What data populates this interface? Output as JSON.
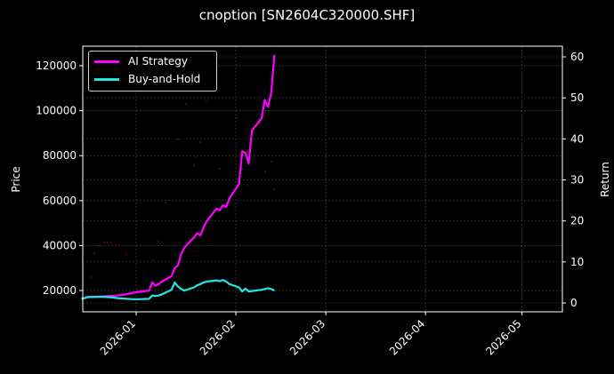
{
  "chart_data": {
    "type": "line",
    "title": "cnoption [SN2604C320000.SHF]",
    "xlabel": "",
    "ylabel_left": "Price",
    "ylabel_right": "Return",
    "x_ticks": [
      "2026-01",
      "2026-02",
      "2026-03",
      "2026-04",
      "2026-05"
    ],
    "y_left_ticks": [
      20000,
      40000,
      60000,
      80000,
      100000,
      120000
    ],
    "y_right_ticks": [
      0,
      10,
      20,
      30,
      40,
      50,
      60
    ],
    "y_left_lim": [
      10000,
      128000
    ],
    "y_right_lim": [
      -2,
      63
    ],
    "x_lim": [
      "2025-12-15",
      "2026-05-15"
    ],
    "grid": true,
    "legend_position": "upper left",
    "series": [
      {
        "name": "AI Strategy",
        "color": "#ff00ff",
        "axis": "right",
        "x": [
          "2025-12-15",
          "2025-12-17",
          "2025-12-19",
          "2025-12-22",
          "2025-12-24",
          "2025-12-26",
          "2025-12-29",
          "2025-12-31",
          "2026-01-02",
          "2026-01-05",
          "2026-01-06",
          "2026-01-07",
          "2026-01-08",
          "2026-01-09",
          "2026-01-12",
          "2026-01-13",
          "2026-01-14",
          "2026-01-15",
          "2026-01-16",
          "2026-01-19",
          "2026-01-20",
          "2026-01-21",
          "2026-01-22",
          "2026-01-23",
          "2026-01-26",
          "2026-01-27",
          "2026-01-28",
          "2026-01-29",
          "2026-01-30",
          "2026-02-02",
          "2026-02-03",
          "2026-02-04",
          "2026-02-05",
          "2026-02-06",
          "2026-02-09",
          "2026-02-10",
          "2026-02-11",
          "2026-02-12",
          "2026-02-13"
        ],
        "values": [
          1.0,
          1.5,
          1.5,
          1.6,
          1.7,
          1.8,
          2.1,
          2.5,
          2.7,
          3.0,
          5.0,
          4.2,
          4.6,
          5.2,
          6.5,
          8.5,
          9.2,
          12.0,
          13.5,
          16.0,
          17.0,
          16.5,
          18.5,
          20.0,
          23.0,
          22.6,
          23.8,
          23.4,
          25.5,
          29.0,
          37.0,
          36.6,
          34.0,
          42.0,
          45.0,
          49.5,
          47.8,
          51.0,
          60.5
        ]
      },
      {
        "name": "Buy-and-Hold",
        "color": "#22e6e6",
        "axis": "right",
        "x": [
          "2025-12-15",
          "2025-12-17",
          "2025-12-19",
          "2025-12-22",
          "2025-12-24",
          "2025-12-26",
          "2025-12-29",
          "2025-12-31",
          "2026-01-02",
          "2026-01-05",
          "2026-01-06",
          "2026-01-07",
          "2026-01-08",
          "2026-01-09",
          "2026-01-12",
          "2026-01-13",
          "2026-01-14",
          "2026-01-15",
          "2026-01-16",
          "2026-01-19",
          "2026-01-20",
          "2026-01-21",
          "2026-01-22",
          "2026-01-23",
          "2026-01-26",
          "2026-01-27",
          "2026-01-28",
          "2026-01-29",
          "2026-01-30",
          "2026-02-02",
          "2026-02-03",
          "2026-02-04",
          "2026-02-05",
          "2026-02-06",
          "2026-02-09",
          "2026-02-10",
          "2026-02-11",
          "2026-02-12",
          "2026-02-13"
        ],
        "values": [
          1.0,
          1.4,
          1.5,
          1.5,
          1.4,
          1.2,
          1.0,
          0.9,
          0.9,
          1.0,
          1.8,
          1.7,
          1.8,
          2.1,
          3.2,
          5.0,
          4.0,
          3.4,
          3.0,
          3.8,
          4.3,
          4.6,
          5.0,
          5.2,
          5.5,
          5.3,
          5.6,
          5.2,
          4.6,
          3.8,
          2.8,
          3.5,
          2.8,
          2.9,
          3.2,
          3.4,
          3.6,
          3.4,
          3.0
        ]
      }
    ],
    "scatter_markers": {
      "color": "#8b0000",
      "description": "faint dark-red trade markers scattered across the plot"
    }
  },
  "legend": {
    "items": [
      {
        "label": "AI Strategy",
        "color": "#ff00ff"
      },
      {
        "label": "Buy-and-Hold",
        "color": "#22e6e6"
      }
    ]
  }
}
